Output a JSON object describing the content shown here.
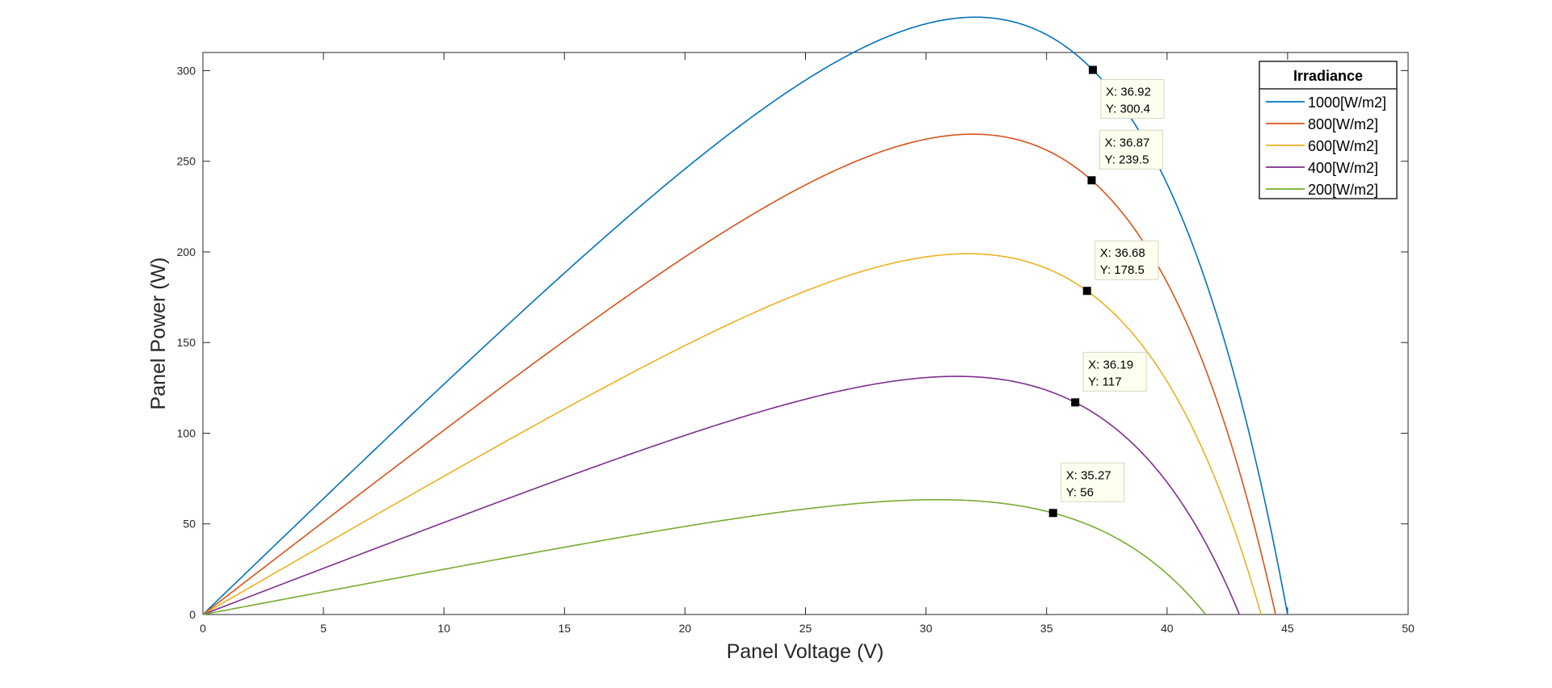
{
  "chart_data": {
    "type": "line",
    "title": "",
    "xlabel": "Panel Voltage (V)",
    "ylabel": "Panel Power (W)",
    "xlim": [
      0,
      50
    ],
    "ylim": [
      0,
      310
    ],
    "xticks": [
      0,
      5,
      10,
      15,
      20,
      25,
      30,
      35,
      40,
      45,
      50
    ],
    "yticks": [
      0,
      50,
      100,
      150,
      200,
      250,
      300
    ],
    "grid": false,
    "legend": {
      "title": "Irradiance",
      "position": "top-right"
    },
    "series": [
      {
        "name": "1000[W/m2]",
        "color": "#0072BD",
        "voc": 45.0,
        "mpp": {
          "x": 36.92,
          "y": 300.4
        },
        "datatip": {
          "x_text": "X: 36.92",
          "y_text": "Y: 300.4"
        }
      },
      {
        "name": "800[W/m2]",
        "color": "#D95319",
        "voc": 44.5,
        "mpp": {
          "x": 36.87,
          "y": 239.5
        },
        "datatip": {
          "x_text": "X: 36.87",
          "y_text": "Y: 239.5"
        }
      },
      {
        "name": "600[W/m2]",
        "color": "#EDB120",
        "voc": 43.9,
        "mpp": {
          "x": 36.68,
          "y": 178.5
        },
        "datatip": {
          "x_text": "X: 36.68",
          "y_text": "Y: 178.5"
        }
      },
      {
        "name": "400[W/m2]",
        "color": "#7E2F8E",
        "voc": 43.0,
        "mpp": {
          "x": 36.19,
          "y": 117
        },
        "datatip": {
          "x_text": "X: 36.19",
          "y_text": "Y: 117"
        }
      },
      {
        "name": "200[W/m2]",
        "color": "#77AC30",
        "voc": 41.6,
        "mpp": {
          "x": 35.27,
          "y": 56
        },
        "datatip": {
          "x_text": "X: 35.27",
          "y_text": "Y: 56"
        }
      }
    ]
  }
}
